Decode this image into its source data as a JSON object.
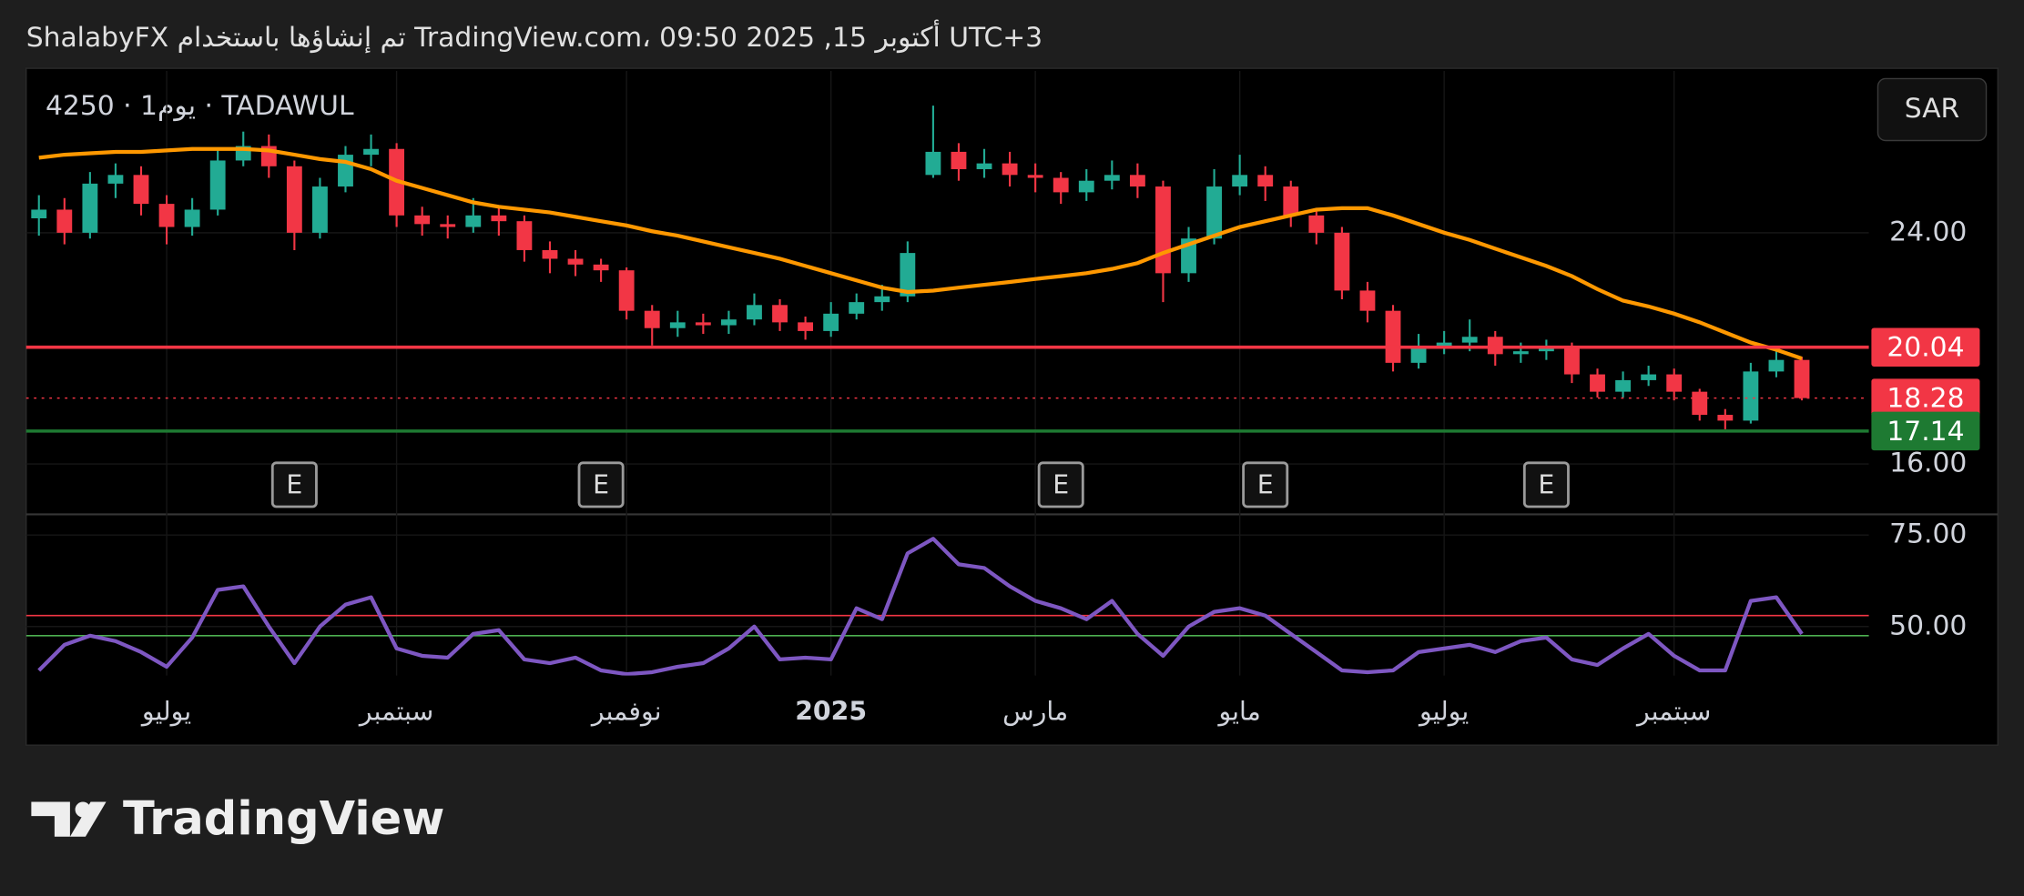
{
  "header": "ShalabyFX تم إنشاؤها باستخدام TradingView.com، أكتوبر 15, 2025 09:50 UTC+3",
  "footer": {
    "logo_text": "TradingView"
  },
  "chart_data": [
    {
      "type": "candlestick",
      "title": "4250 · يوم1 · TADAWUL",
      "currency": "SAR",
      "categories": [
        null,
        null,
        null,
        null,
        null,
        "يوليو",
        null,
        null,
        null,
        null,
        null,
        null,
        null,
        null,
        "سبتمبر",
        null,
        null,
        null,
        null,
        null,
        null,
        null,
        null,
        "نوفمبر",
        null,
        null,
        null,
        null,
        null,
        null,
        null,
        "2025",
        null,
        null,
        null,
        null,
        null,
        null,
        null,
        "مارس",
        null,
        null,
        null,
        null,
        null,
        null,
        null,
        "مايو",
        null,
        null,
        null,
        null,
        null,
        null,
        null,
        "يوليو",
        null,
        null,
        null,
        null,
        null,
        null,
        null,
        null,
        "سبتمبر",
        null,
        null,
        null,
        null,
        null
      ],
      "open": [
        24.5,
        24.8,
        24.0,
        25.7,
        26.0,
        25.0,
        24.2,
        24.8,
        26.5,
        27.0,
        26.3,
        24.0,
        25.6,
        26.7,
        26.9,
        24.6,
        24.3,
        24.2,
        24.6,
        24.4,
        23.4,
        23.1,
        22.9,
        22.7,
        21.3,
        20.7,
        20.9,
        20.8,
        21.0,
        21.5,
        20.9,
        20.6,
        21.2,
        21.6,
        21.8,
        26.0,
        26.8,
        26.2,
        26.4,
        26.0,
        25.9,
        25.4,
        25.8,
        26.0,
        25.6,
        22.6,
        23.8,
        25.6,
        26.0,
        25.6,
        24.6,
        24.0,
        22.0,
        21.3,
        19.5,
        20.0,
        20.2,
        20.4,
        19.8,
        19.9,
        20.0,
        19.1,
        18.5,
        18.9,
        19.1,
        18.5,
        17.7,
        17.5,
        19.2,
        19.6
      ],
      "high": [
        25.3,
        25.2,
        26.1,
        26.4,
        26.3,
        25.3,
        25.2,
        26.9,
        27.5,
        27.4,
        26.5,
        25.9,
        27.0,
        27.4,
        27.1,
        24.9,
        24.6,
        25.2,
        24.9,
        24.6,
        23.7,
        23.4,
        23.1,
        22.8,
        21.5,
        21.3,
        21.2,
        21.3,
        21.9,
        21.7,
        21.1,
        21.6,
        21.9,
        22.2,
        23.7,
        28.4,
        27.1,
        26.9,
        26.8,
        26.4,
        26.1,
        26.2,
        26.5,
        26.4,
        25.8,
        24.2,
        26.2,
        26.7,
        26.3,
        25.8,
        24.8,
        24.2,
        22.3,
        21.5,
        20.5,
        20.6,
        21.0,
        20.6,
        20.2,
        20.3,
        20.2,
        19.3,
        19.2,
        19.4,
        19.3,
        18.6,
        17.9,
        19.5,
        20.0,
        19.7
      ],
      "low": [
        23.9,
        23.6,
        23.8,
        25.2,
        24.6,
        23.6,
        23.9,
        24.6,
        26.3,
        25.9,
        23.4,
        23.8,
        25.4,
        26.3,
        24.2,
        23.9,
        23.8,
        24.0,
        23.9,
        23.0,
        22.6,
        22.5,
        22.3,
        21.0,
        20.1,
        20.4,
        20.5,
        20.5,
        20.8,
        20.6,
        20.3,
        20.4,
        21.0,
        21.3,
        21.6,
        25.9,
        25.8,
        25.9,
        25.6,
        25.4,
        25.0,
        25.1,
        25.5,
        25.2,
        21.6,
        22.3,
        23.6,
        25.3,
        25.1,
        24.2,
        23.6,
        21.7,
        20.9,
        19.2,
        19.3,
        19.8,
        19.9,
        19.4,
        19.5,
        19.6,
        18.8,
        18.3,
        18.3,
        18.7,
        18.2,
        17.5,
        17.2,
        17.4,
        19.0,
        18.2
      ],
      "close": [
        24.8,
        24.0,
        25.7,
        26.0,
        25.0,
        24.2,
        24.8,
        26.5,
        27.0,
        26.3,
        24.0,
        25.6,
        26.7,
        26.9,
        24.6,
        24.3,
        24.2,
        24.6,
        24.4,
        23.4,
        23.1,
        22.9,
        22.7,
        21.3,
        20.7,
        20.9,
        20.8,
        21.0,
        21.5,
        20.9,
        20.6,
        21.2,
        21.6,
        21.8,
        23.3,
        26.8,
        26.2,
        26.4,
        26.0,
        25.9,
        25.4,
        25.8,
        26.0,
        25.6,
        22.6,
        23.8,
        25.6,
        26.0,
        25.6,
        24.6,
        24.0,
        22.0,
        21.3,
        19.5,
        20.0,
        20.2,
        20.4,
        19.8,
        19.9,
        20.0,
        19.1,
        18.5,
        18.9,
        19.1,
        18.5,
        17.7,
        17.5,
        19.2,
        19.6,
        18.28
      ],
      "up_color": "#22ab94",
      "down_color": "#f23645",
      "ma": {
        "color": "#ff9800",
        "values": [
          26.6,
          26.7,
          26.75,
          26.8,
          26.8,
          26.85,
          26.9,
          26.9,
          26.9,
          26.85,
          26.7,
          26.55,
          26.45,
          26.2,
          25.8,
          25.55,
          25.3,
          25.05,
          24.9,
          24.8,
          24.7,
          24.55,
          24.4,
          24.25,
          24.05,
          23.9,
          23.7,
          23.5,
          23.3,
          23.1,
          22.85,
          22.6,
          22.35,
          22.1,
          21.95,
          22.0,
          22.1,
          22.2,
          22.3,
          22.4,
          22.5,
          22.6,
          22.75,
          22.95,
          23.3,
          23.6,
          23.9,
          24.2,
          24.4,
          24.6,
          24.8,
          24.85,
          24.85,
          24.6,
          24.3,
          24.0,
          23.75,
          23.45,
          23.15,
          22.85,
          22.5,
          22.05,
          21.65,
          21.45,
          21.2,
          20.9,
          20.55,
          20.2,
          19.95,
          19.65
        ]
      },
      "hlines": [
        {
          "value": 20.04,
          "color": "#f23645",
          "style": "solid"
        },
        {
          "value": 18.28,
          "color": "#f23645",
          "style": "dotted"
        },
        {
          "value": 17.14,
          "color": "#1e7a32",
          "style": "solid"
        }
      ],
      "earnings": {
        "label": "E",
        "at": [
          10,
          22,
          40,
          48,
          59
        ]
      },
      "ylim": [
        14.3,
        29.6
      ],
      "yticks": [
        {
          "value": 16,
          "label": "16.00"
        },
        {
          "value": 24,
          "label": "24.00"
        }
      ],
      "grid": true
    },
    {
      "type": "line",
      "color": "#7e57c2",
      "values": [
        38,
        45,
        47.5,
        46,
        43,
        39,
        47,
        60,
        61,
        50,
        40,
        50,
        56,
        58,
        44,
        42,
        41.5,
        48,
        49,
        41,
        40,
        41.5,
        38,
        37,
        37.5,
        39,
        40,
        44,
        50,
        41,
        41.5,
        41,
        55,
        52,
        70,
        74,
        67,
        66,
        61,
        57,
        55,
        52,
        57,
        48,
        42,
        50,
        54,
        55,
        53,
        48,
        43,
        38,
        37.5,
        38,
        43,
        44,
        45,
        43,
        46,
        47,
        41,
        39.5,
        44,
        48,
        42,
        38,
        38,
        57,
        58,
        48
      ],
      "levels": [
        {
          "value": 53,
          "color": "#f23645"
        },
        {
          "value": 47.5,
          "color": "#4caf50"
        }
      ],
      "ylim": [
        36.6,
        80.3
      ],
      "yticks": [
        {
          "value": 50,
          "label": "50.00"
        },
        {
          "value": 75,
          "label": "75.00"
        }
      ],
      "grid": true
    }
  ]
}
